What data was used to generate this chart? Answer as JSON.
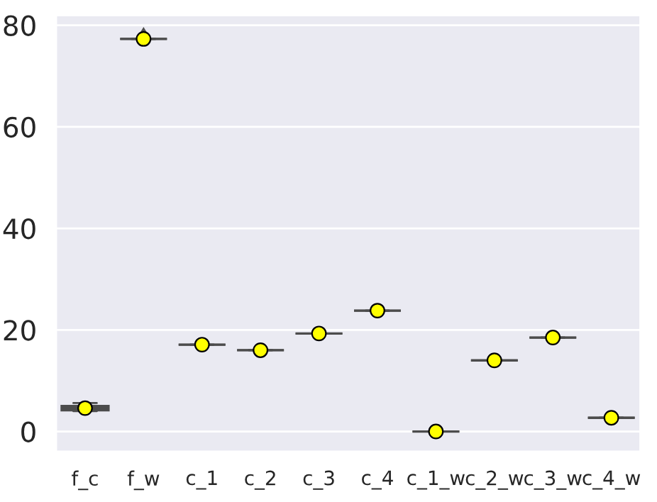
{
  "chart_data": {
    "type": "box",
    "categories": [
      "f_c",
      "f_w",
      "c_1",
      "c_2",
      "c_3",
      "c_4",
      "c_1_w",
      "c_2_w",
      "c_3_w",
      "c_4_w"
    ],
    "boxes": [
      {
        "low": 4.0,
        "q1": 4.2,
        "median": 4.5,
        "q3": 5.0,
        "high": 5.6
      },
      {
        "low": 77.3,
        "q1": 77.3,
        "median": 77.3,
        "q3": 77.3,
        "high": 77.3,
        "outliers": [
          78.2
        ]
      },
      {
        "low": 17.1,
        "q1": 17.1,
        "median": 17.1,
        "q3": 17.1,
        "high": 17.1
      },
      {
        "low": 16.0,
        "q1": 16.0,
        "median": 16.0,
        "q3": 16.0,
        "high": 16.0
      },
      {
        "low": 19.3,
        "q1": 19.3,
        "median": 19.3,
        "q3": 19.3,
        "high": 19.3
      },
      {
        "low": 23.8,
        "q1": 23.8,
        "median": 23.8,
        "q3": 23.8,
        "high": 23.8
      },
      {
        "low": 0.0,
        "q1": 0.0,
        "median": 0.0,
        "q3": 0.0,
        "high": 0.0
      },
      {
        "low": 14.0,
        "q1": 14.0,
        "median": 14.0,
        "q3": 14.0,
        "high": 14.0
      },
      {
        "low": 18.5,
        "q1": 18.5,
        "median": 18.5,
        "q3": 18.5,
        "high": 18.5
      },
      {
        "low": 2.7,
        "q1": 2.7,
        "median": 2.7,
        "q3": 2.7,
        "high": 2.7
      }
    ],
    "color": "#4c4c4c",
    "series": [
      {
        "type": "scatter",
        "color": "#ffff00",
        "x": [
          "f_c",
          "f_w",
          "c_1",
          "c_2",
          "c_3",
          "c_4",
          "c_1_w",
          "c_2_w",
          "c_3_w",
          "c_4_w"
        ],
        "values": [
          4.6,
          77.3,
          17.1,
          16.0,
          19.3,
          23.8,
          0.0,
          14.0,
          18.5,
          2.7
        ]
      }
    ],
    "marker": "circle",
    "ylim": [
      -4,
      82
    ],
    "yticks": [
      0,
      20,
      40,
      60,
      80
    ],
    "grid": "y"
  }
}
